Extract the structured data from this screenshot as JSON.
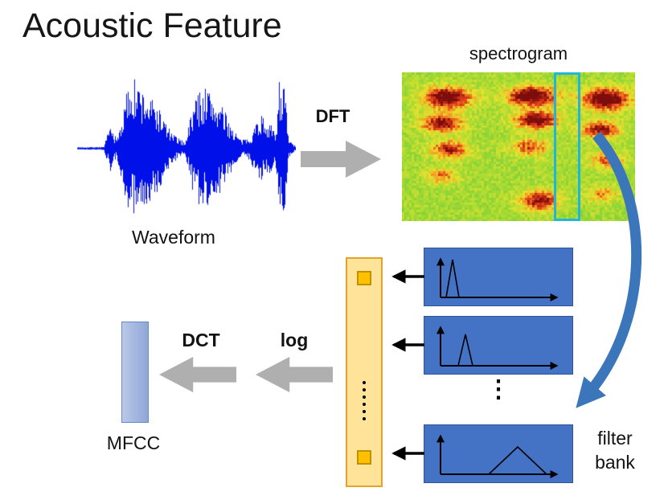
{
  "title": "Acoustic Feature",
  "labels": {
    "waveform": "Waveform",
    "dft": "DFT",
    "spectrogram": "spectrogram",
    "log": "log",
    "dct": "DCT",
    "mfcc": "MFCC",
    "filter_bank": [
      "filter",
      "bank"
    ],
    "ellipsis": "⋮"
  },
  "colors": {
    "waveform_blue": "#0010e8",
    "box_blue": "#4472c4",
    "box_blue_border": "#2f5597",
    "column_fill": "#ffe399",
    "column_border": "#dfa32e",
    "cell_fill": "#ffc000",
    "cell_border": "#bf9000",
    "arrow_gray": "#afafaf",
    "curved_arrow": "#3a76b9",
    "highlight_cyan": "#1fb6d9",
    "mfcc_fill_light": "#b9c9e8",
    "mfcc_fill_dark": "#8fa6d6",
    "mfcc_border": "#6688c8"
  }
}
